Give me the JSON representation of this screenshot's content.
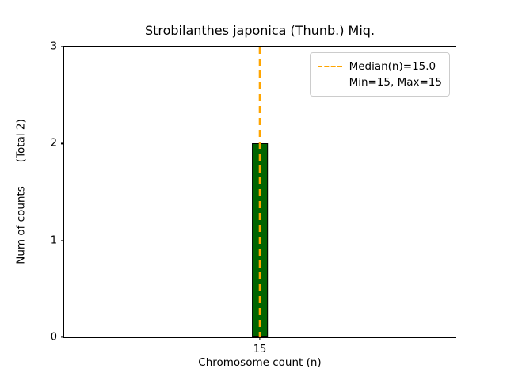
{
  "chart_data": {
    "type": "bar",
    "title": "Strobilanthes japonica (Thunb.) Miq.",
    "xlabel": "Chromosome count (n)",
    "ylabel": "Num of counts       (Total 2)",
    "categories": [
      15
    ],
    "values": [
      2
    ],
    "xlim": [
      14.5,
      15.5
    ],
    "ylim": [
      0,
      3
    ],
    "yticks": [
      0,
      1,
      2,
      3
    ],
    "xticks": [
      15
    ],
    "bar_width": 0.04,
    "bar_color": "#006400",
    "bar_edge_color": "#000000",
    "grid": false,
    "median_line": {
      "x": 15.0,
      "color": "#FFA500",
      "style": "dashed"
    },
    "legend": {
      "position": "upper right",
      "entries": [
        {
          "sample": "dashed-orange-line",
          "lines": [
            "Median(n)=15.0",
            "Min=15, Max=15"
          ]
        }
      ]
    },
    "stats": {
      "median": 15.0,
      "min": 15,
      "max": 15,
      "total_counts": 2
    }
  }
}
